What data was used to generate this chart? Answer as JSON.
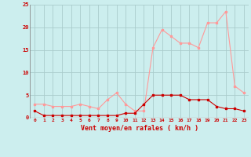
{
  "hours": [
    0,
    1,
    2,
    3,
    4,
    5,
    6,
    7,
    8,
    9,
    10,
    11,
    12,
    13,
    14,
    15,
    16,
    17,
    18,
    19,
    20,
    21,
    22,
    23
  ],
  "mean_wind": [
    1.5,
    0.5,
    0.5,
    0.5,
    0.5,
    0.5,
    0.5,
    0.5,
    0.5,
    0.5,
    1.0,
    1.0,
    3.0,
    5.0,
    5.0,
    5.0,
    5.0,
    4.0,
    4.0,
    4.0,
    2.5,
    2.0,
    2.0,
    1.5
  ],
  "gust_wind": [
    3.0,
    3.0,
    2.5,
    2.5,
    2.5,
    3.0,
    2.5,
    2.0,
    4.0,
    5.5,
    3.0,
    1.5,
    1.5,
    15.5,
    19.5,
    18.0,
    16.5,
    16.5,
    15.5,
    21.0,
    21.0,
    23.5,
    7.0,
    5.5
  ],
  "mean_color": "#cc0000",
  "gust_color": "#ff9999",
  "bg_color": "#cceeee",
  "grid_color": "#aacccc",
  "xlabel": "Vent moyen/en rafales ( km/h )",
  "xlabel_color": "#cc0000",
  "tick_color": "#cc0000",
  "ylim": [
    0,
    25
  ],
  "yticks": [
    0,
    5,
    10,
    15,
    20,
    25
  ]
}
